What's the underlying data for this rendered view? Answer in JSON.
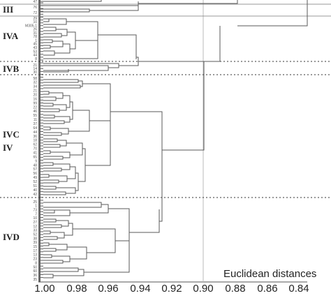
{
  "axis": {
    "title": "Euclidean distances",
    "ticks": [
      "1.00",
      "0.98",
      "0.96",
      "0.94",
      "0.92",
      "0.90",
      "0.88",
      "0.86",
      "0.84"
    ],
    "range": [
      1.0,
      0.83
    ]
  },
  "groups": {
    "III": "III",
    "IVA": "IVA",
    "IVB": "IVB",
    "IVC": "IVC",
    "IV": "IV",
    "IVD": "IVD"
  },
  "leaves": {
    "top": [
      "47",
      "76",
      "72"
    ],
    "iva": [
      "29",
      "10",
      "M305-1",
      "26",
      "31",
      "78",
      "1",
      "45",
      "43",
      "53",
      "44",
      "8"
    ],
    "ivb": [
      "21",
      "14",
      "30"
    ],
    "ivc": [
      "58",
      "32",
      "34",
      "21",
      "20",
      "16",
      "99",
      "22",
      "46",
      "55",
      "11",
      "37",
      "64",
      "44",
      "36",
      "18",
      "62",
      "70",
      "41",
      "65",
      "9",
      "48",
      "57",
      "56",
      "49",
      "52",
      "51",
      "40",
      "42"
    ],
    "ivd": [
      "25",
      "1",
      "73",
      "7",
      "10",
      "27",
      "12",
      "33",
      "52",
      "38",
      "39",
      "15",
      "17",
      "13",
      "23",
      "8",
      "50",
      "60",
      "36",
      "35"
    ]
  },
  "colors": {
    "line": "#5a5a5a",
    "divider": "#777777",
    "dotted": "#333333",
    "refline": "#bbbbbb"
  }
}
